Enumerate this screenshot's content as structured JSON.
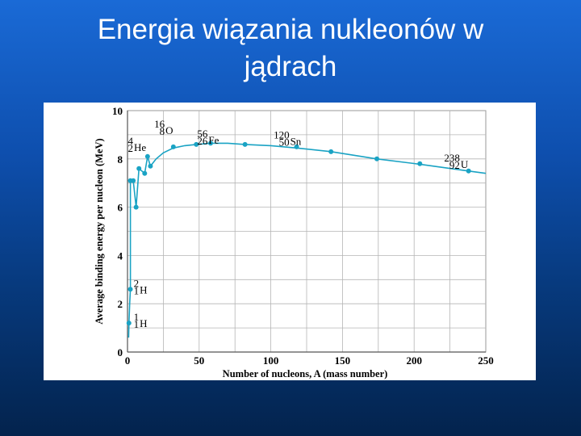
{
  "slide": {
    "title_line1": "Energia wiązania nukleonów w",
    "title_line2": "jądrach"
  },
  "chart_data": {
    "type": "line",
    "x_label": "Number of nucleons, A (mass number)",
    "y_label": "Average binding energy per nucleon (MeV)",
    "xlim": [
      0,
      250
    ],
    "ylim": [
      0,
      10
    ],
    "x_ticks": [
      0,
      50,
      100,
      150,
      200,
      250
    ],
    "y_ticks": [
      0,
      2,
      4,
      6,
      8,
      10
    ],
    "grid": true,
    "line_color": "#1aa3c4",
    "points": [
      {
        "x": 1,
        "y": 1.2
      },
      {
        "x": 2,
        "y": 2.6
      },
      {
        "x": 2,
        "y": 7.1
      },
      {
        "x": 4,
        "y": 7.1
      },
      {
        "x": 6,
        "y": 6.0
      },
      {
        "x": 8,
        "y": 7.6
      },
      {
        "x": 12,
        "y": 7.4
      },
      {
        "x": 14,
        "y": 8.1
      },
      {
        "x": 16,
        "y": 7.7
      },
      {
        "x": 32,
        "y": 8.5
      },
      {
        "x": 48,
        "y": 8.6
      },
      {
        "x": 58,
        "y": 8.65
      },
      {
        "x": 82,
        "y": 8.6
      },
      {
        "x": 118,
        "y": 8.5
      },
      {
        "x": 142,
        "y": 8.3
      },
      {
        "x": 174,
        "y": 8.0
      },
      {
        "x": 204,
        "y": 7.8
      },
      {
        "x": 238,
        "y": 7.5
      }
    ],
    "curve": [
      [
        0.8,
        0.6
      ],
      [
        1,
        1.2
      ],
      [
        1.5,
        2.0
      ],
      [
        2,
        2.6
      ],
      [
        2,
        7.1
      ],
      [
        4,
        7.1
      ],
      [
        6,
        6.0
      ],
      [
        8,
        7.6
      ],
      [
        12,
        7.4
      ],
      [
        14,
        8.1
      ],
      [
        16,
        7.7
      ],
      [
        20,
        8.0
      ],
      [
        25,
        8.25
      ],
      [
        32,
        8.45
      ],
      [
        40,
        8.55
      ],
      [
        48,
        8.6
      ],
      [
        58,
        8.65
      ],
      [
        70,
        8.65
      ],
      [
        82,
        8.6
      ],
      [
        100,
        8.55
      ],
      [
        118,
        8.45
      ],
      [
        142,
        8.3
      ],
      [
        174,
        8.0
      ],
      [
        204,
        7.78
      ],
      [
        238,
        7.5
      ],
      [
        250,
        7.4
      ]
    ],
    "annotations": [
      {
        "mass": "1",
        "atomic": "1",
        "symbol": "H",
        "x": 4,
        "y": 1.2
      },
      {
        "mass": "2",
        "atomic": "1",
        "symbol": "H",
        "x": 4,
        "y": 2.6
      },
      {
        "mass": "4",
        "atomic": "2",
        "symbol": "He",
        "x": 0,
        "y": 8.5
      },
      {
        "mass": "16",
        "atomic": "8",
        "symbol": "O",
        "x": 22,
        "y": 9.2
      },
      {
        "mass": "56",
        "atomic": "26",
        "symbol": "Fe",
        "x": 52,
        "y": 8.8
      },
      {
        "mass": "120",
        "atomic": "50",
        "symbol": "Sn",
        "x": 109,
        "y": 8.75
      },
      {
        "mass": "238",
        "atomic": "92",
        "symbol": "U",
        "x": 228,
        "y": 7.8
      }
    ]
  }
}
